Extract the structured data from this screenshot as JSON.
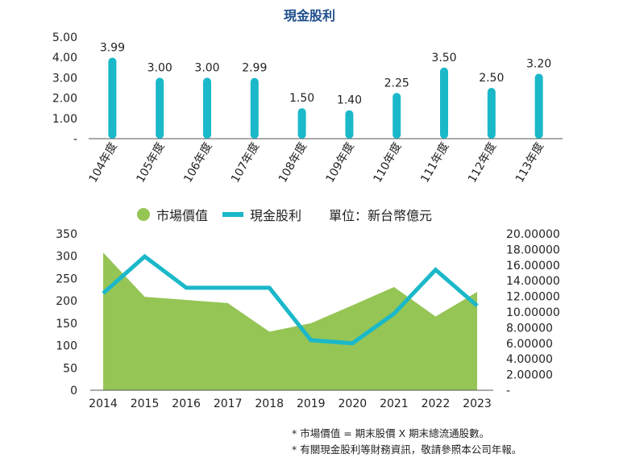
{
  "top_chart_title": "現金股利",
  "legend": {
    "market_value": "市場價值",
    "cash_dividend": "現金股利",
    "unit": "單位：新台幣億元"
  },
  "notes": [
    "* 市場價值 = 期末股價 X 期末總流通股數。",
    "* 有關現金股利等財務資訊，敬請參照本公司年報。"
  ],
  "colors": {
    "bar": "#1ab8c9",
    "area": "#95c555",
    "line": "#1ab8c9",
    "title": "#1f4e8c"
  },
  "chart_data": [
    {
      "type": "bar",
      "title": "現金股利",
      "categories": [
        "104年度",
        "105年度",
        "106年度",
        "107年度",
        "108年度",
        "109年度",
        "110年度",
        "111年度",
        "112年度",
        "113年度"
      ],
      "values": [
        3.99,
        3.0,
        3.0,
        2.99,
        1.5,
        1.4,
        2.25,
        3.5,
        2.5,
        3.2
      ],
      "value_labels": [
        "3.99",
        "3.00",
        "3.00",
        "2.99",
        "1.50",
        "1.40",
        "2.25",
        "3.50",
        "2.50",
        "3.20"
      ],
      "yticks": [
        "-",
        "1.00",
        "2.00",
        "3.00",
        "4.00",
        "5.00"
      ],
      "ylim": [
        0,
        5
      ],
      "grid": false
    },
    {
      "type": "area",
      "categories": [
        "2014",
        "2015",
        "2016",
        "2017",
        "2018",
        "2019",
        "2020",
        "2021",
        "2022",
        "2023"
      ],
      "series": [
        {
          "name": "市場價值",
          "type": "area",
          "axis": "left",
          "values": [
            308,
            209,
            202,
            195,
            131,
            150,
            190,
            231,
            165,
            220
          ]
        },
        {
          "name": "現金股利",
          "type": "line",
          "axis": "right",
          "values": [
            12.4,
            17.1,
            13.1,
            13.1,
            13.1,
            6.4,
            6.0,
            9.8,
            15.4,
            10.8
          ]
        }
      ],
      "left_yticks": [
        "0",
        "50",
        "100",
        "150",
        "200",
        "250",
        "300",
        "350"
      ],
      "left_ylim": [
        0,
        350
      ],
      "right_yticks": [
        "-",
        "2.00000",
        "4.00000",
        "6.00000",
        "8.00000",
        "10.00000",
        "12.00000",
        "14.00000",
        "16.00000",
        "18.00000",
        "20.00000"
      ],
      "right_ylim": [
        0,
        20
      ],
      "legend_position": "top",
      "grid": false
    }
  ]
}
